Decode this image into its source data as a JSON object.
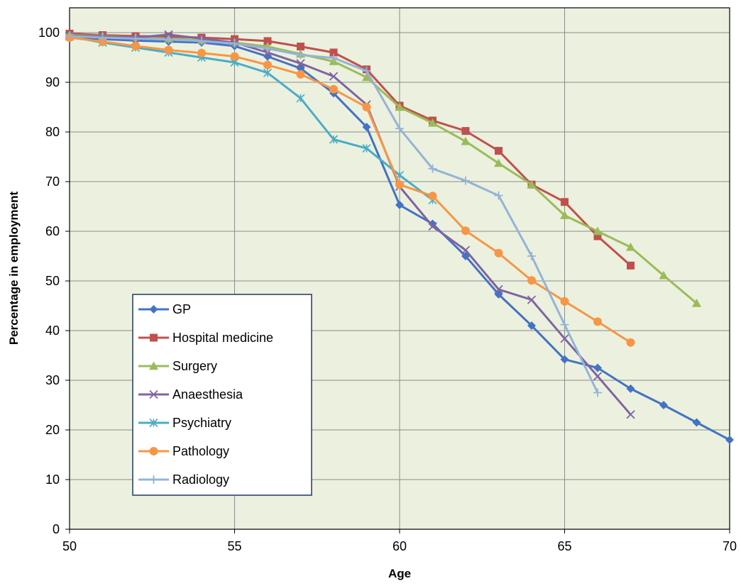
{
  "chart_data": {
    "type": "line",
    "xlabel": "Age",
    "ylabel": "Percentage in employment",
    "xlim": [
      50,
      70
    ],
    "ylim": [
      0,
      105
    ],
    "x_ticks": [
      50,
      55,
      60,
      65,
      70
    ],
    "y_ticks": [
      0,
      10,
      20,
      30,
      40,
      50,
      60,
      70,
      80,
      90,
      100
    ],
    "grid": true,
    "plot_background": "#ebf1de",
    "legend_position": "lower-left",
    "series": [
      {
        "name": "GP",
        "color": "#4472c4",
        "marker": "diamond",
        "x": [
          50,
          51,
          52,
          53,
          54,
          55,
          56,
          57,
          58,
          59,
          60,
          61,
          62,
          63,
          64,
          65,
          66,
          67,
          68,
          69,
          70
        ],
        "values": [
          99,
          98.7,
          98.4,
          98.2,
          98,
          97.3,
          95.2,
          92.8,
          87.8,
          81,
          65.3,
          61.5,
          55,
          47.3,
          41,
          34.2,
          32.5,
          28.3,
          25,
          21.5,
          18
        ]
      },
      {
        "name": "Hospital medicine",
        "color": "#c0504d",
        "marker": "square",
        "x": [
          50,
          51,
          52,
          53,
          54,
          55,
          56,
          57,
          58,
          59,
          60,
          61,
          62,
          63,
          64,
          65,
          66,
          67
        ],
        "values": [
          99.8,
          99.5,
          99.3,
          99.2,
          99,
          98.7,
          98.3,
          97.2,
          96,
          92.6,
          85.3,
          82.3,
          80.2,
          76.2,
          69.4,
          65.9,
          59,
          53.1
        ]
      },
      {
        "name": "Surgery",
        "color": "#9bbb59",
        "marker": "triangle",
        "x": [
          50,
          51,
          52,
          53,
          54,
          55,
          56,
          57,
          58,
          59,
          60,
          61,
          62,
          63,
          64,
          65,
          66,
          67,
          68,
          69
        ],
        "values": [
          99.5,
          99.3,
          99,
          98.8,
          98.5,
          98,
          97.2,
          95.7,
          94.2,
          91,
          85,
          81.8,
          78.1,
          73.7,
          69.4,
          63.2,
          60,
          56.8,
          51.1,
          45.5
        ]
      },
      {
        "name": "Anaesthesia",
        "color": "#8064a2",
        "marker": "x",
        "x": [
          50,
          51,
          52,
          53,
          54,
          55,
          56,
          57,
          58,
          59,
          60,
          61,
          62,
          63,
          64,
          65,
          66,
          67
        ],
        "values": [
          99.4,
          99.2,
          99,
          99.6,
          98.8,
          98,
          96,
          93.8,
          91.2,
          85.5,
          69,
          61,
          56.2,
          48.3,
          46.2,
          38.4,
          30.8,
          23.1
        ]
      },
      {
        "name": "Psychiatry",
        "color": "#4bacc6",
        "marker": "star",
        "x": [
          50,
          51,
          52,
          53,
          54,
          55,
          56,
          57,
          58,
          59,
          60,
          61
        ],
        "values": [
          99.2,
          98,
          97,
          96,
          95,
          94,
          91.9,
          86.8,
          78.5,
          76.7,
          71.3,
          66.3
        ]
      },
      {
        "name": "Pathology",
        "color": "#f79646",
        "marker": "circle",
        "x": [
          50,
          51,
          52,
          53,
          54,
          55,
          56,
          57,
          58,
          59,
          60,
          61,
          62,
          63,
          64,
          65,
          66,
          67
        ],
        "values": [
          99,
          98.2,
          97.3,
          96.5,
          95.9,
          95.2,
          93.5,
          91.6,
          88.6,
          85,
          69.4,
          67.1,
          60.1,
          55.6,
          50.1,
          45.9,
          41.8,
          37.6
        ]
      },
      {
        "name": "Radiology",
        "color": "#95b3d7",
        "marker": "plus",
        "x": [
          50,
          51,
          52,
          53,
          54,
          55,
          56,
          57,
          58,
          59,
          60,
          61,
          62,
          63,
          64,
          65,
          66
        ],
        "values": [
          99.3,
          99,
          98.8,
          98.6,
          98.3,
          97.8,
          96.8,
          95.5,
          94.9,
          92.3,
          80.7,
          72.6,
          70.2,
          67.2,
          55,
          41.2,
          27.5
        ]
      }
    ]
  }
}
